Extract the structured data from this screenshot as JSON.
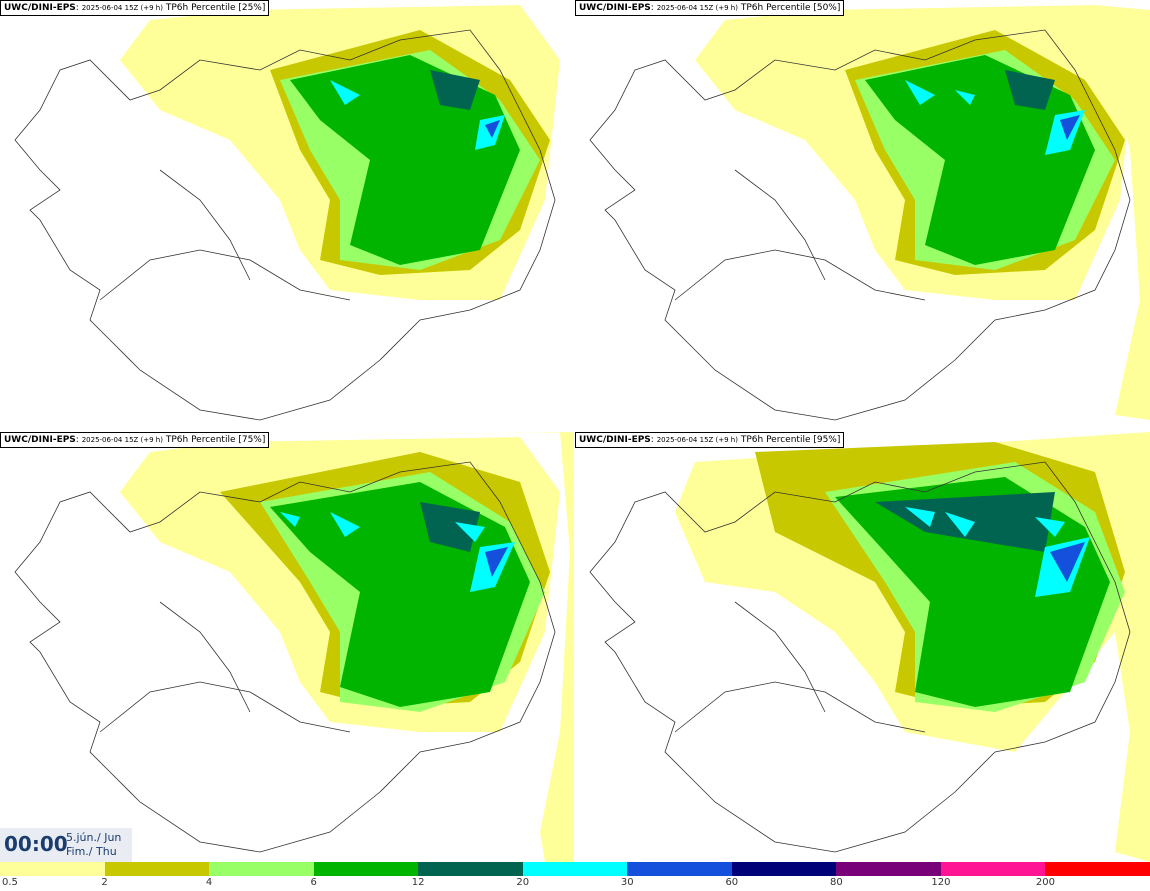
{
  "panels": [
    {
      "model": "UWC/DINI-EPS",
      "run": "2025-06-04 15Z (+9 h)",
      "product": "TP6h Percentile [25%]",
      "percentile": 25
    },
    {
      "model": "UWC/DINI-EPS",
      "run": "2025-06-04 15Z (+9 h)",
      "product": "TP6h Percentile [50%]",
      "percentile": 50
    },
    {
      "model": "UWC/DINI-EPS",
      "run": "2025-06-04 15Z (+9 h)",
      "product": "TP6h Percentile [75%]",
      "percentile": 75
    },
    {
      "model": "UWC/DINI-EPS",
      "run": "2025-06-04 15Z (+9 h)",
      "product": "TP6h Percentile [95%]",
      "percentile": 95
    }
  ],
  "time": {
    "clock": "00:00",
    "date_line1": "5.jún./ Jun",
    "date_line2": "Fim./ Thu"
  },
  "legend": {
    "labels": [
      "0.5",
      "2",
      "4",
      "6",
      "12",
      "20",
      "30",
      "60",
      "80",
      "120",
      "200"
    ],
    "colors": [
      "#ffff99",
      "#c8c800",
      "#99ff66",
      "#00b400",
      "#006450",
      "#00ffff",
      "#1450dc",
      "#000078",
      "#780078",
      "#ff1493",
      "#ff0000"
    ]
  },
  "map_colors": {
    "level1": "#ffff99",
    "level2": "#c8c800",
    "level3": "#99ff66",
    "level4": "#00b400",
    "level5": "#006450",
    "level6": "#00ffff",
    "level7": "#1450dc",
    "coast": "#333333"
  }
}
